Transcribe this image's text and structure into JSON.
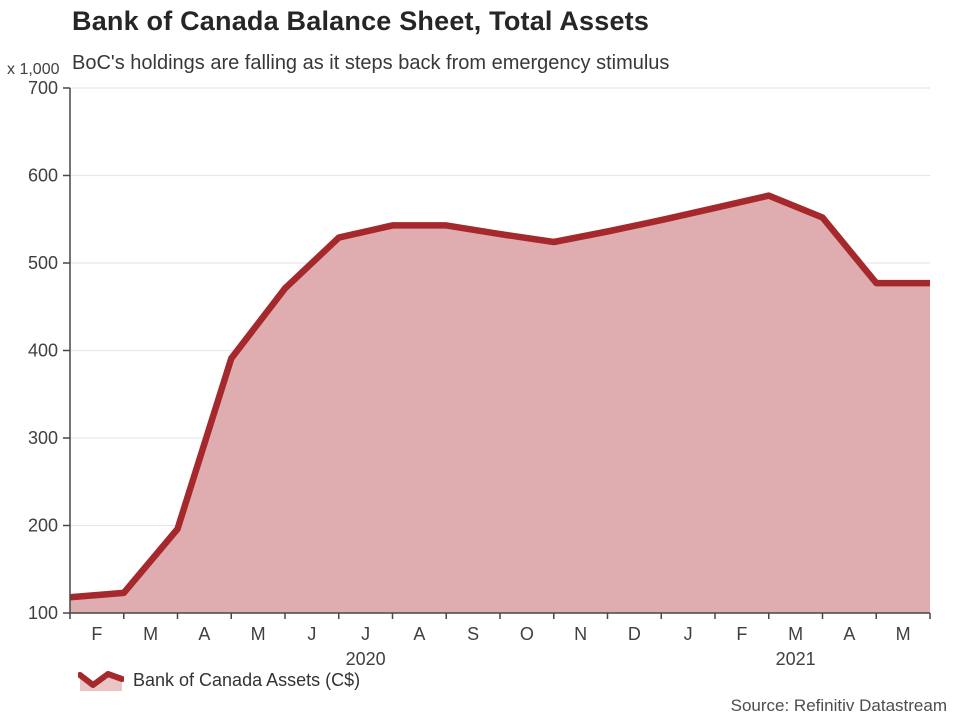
{
  "chart": {
    "title": "Bank of Canada Balance Sheet, Total Assets",
    "subtitle": "BoC's holdings are falling as it steps back from emergency stimulus",
    "y_unit": "x 1,000",
    "legend_label": "Bank of Canada Assets (C$)",
    "source": "Source: Refinitiv Datastream"
  },
  "chart_data": {
    "type": "area",
    "title": "Bank of Canada Balance Sheet, Total Assets",
    "subtitle": "BoC's holdings are falling as it steps back from emergency stimulus",
    "unit_label": "x 1,000",
    "source": "Source: Refinitiv Datastream",
    "legend_position": "bottom-left",
    "grid": "horizontal",
    "x": [
      "Feb 2020",
      "Mar 2020",
      "Apr 2020",
      "May 2020",
      "Jun 2020",
      "Jul 2020",
      "Aug 2020",
      "Sep 2020",
      "Oct 2020",
      "Nov 2020",
      "Dec 2020",
      "Jan 2021",
      "Feb 2021",
      "Mar 2021",
      "Apr 2021",
      "May 2021",
      "Jun 2021"
    ],
    "series": [
      {
        "name": "Bank of Canada Assets (C$)",
        "values": [
          118,
          123,
          196,
          391,
          471,
          529,
          543,
          543,
          533,
          524,
          536,
          549,
          563,
          577,
          552,
          477,
          477
        ]
      }
    ],
    "month_tick_labels": [
      "F",
      "M",
      "A",
      "M",
      "J",
      "J",
      "A",
      "S",
      "O",
      "N",
      "D",
      "J",
      "F",
      "M",
      "A",
      "M"
    ],
    "year_labels": [
      {
        "label": "2020",
        "from_tick": 0,
        "to_tick": 11
      },
      {
        "label": "2021",
        "from_tick": 11,
        "to_tick": 16
      }
    ],
    "ylim": [
      100,
      700
    ],
    "yticks": [
      100,
      200,
      300,
      400,
      500,
      600,
      700
    ],
    "colors": {
      "line": "#A5282C",
      "fill": "#DFADAF",
      "legend_fill": "#EBC4C6",
      "axis": "#474747",
      "grid": "#E7E7E7",
      "tick_label": "#404040"
    }
  }
}
